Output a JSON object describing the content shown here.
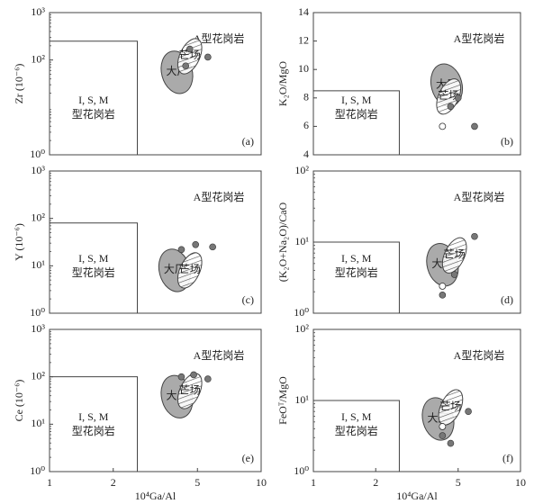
{
  "chart_data": [
    {
      "type": "scatter",
      "ylabel": "Zr (10⁻⁶)",
      "xlim": [
        1,
        10
      ],
      "ylim": [
        1,
        1000
      ],
      "ylog": true,
      "xlog": true,
      "yticks": [
        {
          "value": 1,
          "label": "10⁰"
        },
        {
          "value": 100,
          "label": "10²"
        },
        {
          "value": 1000,
          "label": "10³"
        }
      ],
      "boundary": {
        "x": 2.6,
        "y": 250
      },
      "fields": [
        {
          "name": "大厂",
          "x": 4.0,
          "y": 55,
          "fill": "gray"
        },
        {
          "name": "芒场",
          "x": 4.6,
          "y": 120,
          "fill": "hatch"
        }
      ],
      "points": {
        "color": "#777777",
        "x": [
          4.6,
          5.6,
          4.4
        ],
        "y": [
          170,
          115,
          75
        ]
      },
      "region_a": "A型花岗岩",
      "region_ism_1": "I, S, M",
      "region_ism_2": "型花岗岩",
      "panel_label": "(a)"
    },
    {
      "type": "scatter",
      "ylabel": "K₂O/MgO",
      "xlim": [
        1,
        10
      ],
      "ylim": [
        4,
        14
      ],
      "ylog": false,
      "xlog": true,
      "yticks": [
        4,
        6,
        8,
        10,
        12,
        14
      ],
      "boundary": {
        "x": 2.6,
        "y": 8.5
      },
      "fields": [
        {
          "name": "大厂",
          "x": 4.4,
          "y": 8.9,
          "fill": "gray"
        },
        {
          "name": "芒场",
          "x": 4.5,
          "y": 8.1,
          "fill": "hatch"
        }
      ],
      "points": {
        "color": "#777777",
        "x": [
          5.0,
          4.6,
          6.0
        ],
        "y": [
          8.0,
          7.4,
          6.0
        ]
      },
      "open_points": {
        "x": [
          4.2
        ],
        "y": [
          6.0
        ]
      },
      "region_a": "A型花岗岩",
      "region_ism_1": "I, S, M",
      "region_ism_2": "型花岗岩",
      "panel_label": "(b)"
    },
    {
      "type": "scatter",
      "ylabel": "Y (10⁻⁶)",
      "xlim": [
        1,
        10
      ],
      "ylim": [
        1,
        1000
      ],
      "ylog": true,
      "xlog": true,
      "yticks": [
        {
          "value": 1,
          "label": "10⁰"
        },
        {
          "value": 10,
          "label": "10¹"
        },
        {
          "value": 100,
          "label": "10²"
        },
        {
          "value": 1000,
          "label": "10³"
        }
      ],
      "boundary": {
        "x": 2.6,
        "y": 80
      },
      "fields": [
        {
          "name": "大厂",
          "x": 3.9,
          "y": 8,
          "fill": "gray"
        },
        {
          "name": "芒场",
          "x": 4.6,
          "y": 8,
          "fill": "hatch"
        }
      ],
      "points": {
        "color": "#777777",
        "x": [
          4.9,
          5.9,
          4.2
        ],
        "y": [
          28,
          25,
          22
        ]
      },
      "region_a": "A型花岗岩",
      "region_ism_1": "I, S, M",
      "region_ism_2": "型花岗岩",
      "panel_label": "(c)"
    },
    {
      "type": "scatter",
      "ylabel": "(K₂O+Na₂O)/CaO",
      "xlim": [
        1,
        10
      ],
      "ylim": [
        1,
        100
      ],
      "ylog": true,
      "xlog": true,
      "yticks": [
        {
          "value": 1,
          "label": "10⁰"
        },
        {
          "value": 10,
          "label": "10¹"
        },
        {
          "value": 100,
          "label": "10²"
        }
      ],
      "boundary": {
        "x": 2.6,
        "y": 10
      },
      "fields": [
        {
          "name": "大厂",
          "x": 4.2,
          "y": 4.8,
          "fill": "gray"
        },
        {
          "name": "芒场",
          "x": 4.8,
          "y": 6.5,
          "fill": "hatch"
        }
      ],
      "points": {
        "color": "#777777",
        "x": [
          6.0,
          4.8,
          4.2
        ],
        "y": [
          12,
          3.5,
          1.8
        ]
      },
      "open_points": {
        "x": [
          4.2
        ],
        "y": [
          2.4
        ]
      },
      "region_a": "A型花岗岩",
      "region_ism_1": "I, S, M",
      "region_ism_2": "型花岗岩",
      "panel_label": "(d)"
    },
    {
      "type": "scatter",
      "ylabel": "Ce (10⁻⁶)",
      "xlabel": "10⁴Ga/Al",
      "xlim": [
        1,
        10
      ],
      "ylim": [
        1,
        1000
      ],
      "ylog": true,
      "xlog": true,
      "xticks": [
        1,
        2,
        5,
        10
      ],
      "yticks": [
        {
          "value": 1,
          "label": "10⁰"
        },
        {
          "value": 10,
          "label": "10¹"
        },
        {
          "value": 100,
          "label": "10²"
        },
        {
          "value": 1000,
          "label": "10³"
        }
      ],
      "boundary": {
        "x": 2.6,
        "y": 100
      },
      "fields": [
        {
          "name": "大厂",
          "x": 4.0,
          "y": 38,
          "fill": "gray"
        },
        {
          "name": "芒场",
          "x": 4.6,
          "y": 50,
          "fill": "hatch"
        }
      ],
      "points": {
        "color": "#777777",
        "x": [
          4.2,
          4.8,
          5.6
        ],
        "y": [
          100,
          110,
          90
        ]
      },
      "region_a": "A型花岗岩",
      "region_ism_1": "I, S, M",
      "region_ism_2": "型花岗岩",
      "panel_label": "(e)"
    },
    {
      "type": "scatter",
      "ylabel": "FeOᵀ/MgO",
      "xlabel": "10⁴Ga/Al",
      "xlim": [
        1,
        10
      ],
      "ylim": [
        1,
        100
      ],
      "ylog": true,
      "xlog": true,
      "xticks": [
        1,
        2,
        5,
        10
      ],
      "yticks": [
        {
          "value": 1,
          "label": "10⁰"
        },
        {
          "value": 10,
          "label": "10¹"
        },
        {
          "value": 100,
          "label": "10²"
        }
      ],
      "boundary": {
        "x": 2.6,
        "y": 10
      },
      "fields": [
        {
          "name": "大厂",
          "x": 4.0,
          "y": 5.5,
          "fill": "gray"
        },
        {
          "name": "芒场",
          "x": 4.6,
          "y": 8,
          "fill": "hatch"
        }
      ],
      "points": {
        "color": "#777777",
        "x": [
          5.6,
          4.2,
          4.6
        ],
        "y": [
          7,
          3.2,
          2.5
        ]
      },
      "open_points": {
        "x": [
          4.2
        ],
        "y": [
          4.3
        ]
      },
      "region_a": "A型花岗岩",
      "region_ism_1": "I, S, M",
      "region_ism_2": "型花岗岩",
      "panel_label": "(f)"
    }
  ]
}
